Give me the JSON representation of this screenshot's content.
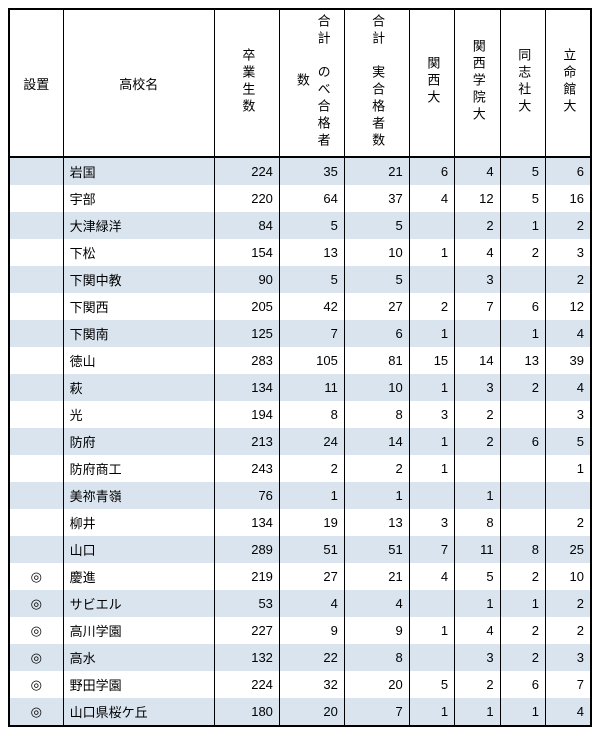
{
  "headers": {
    "installed": "設置",
    "school": "高校名",
    "graduates": "卒業生数",
    "total_nobe": "合計　のべ合格者数",
    "total_jitsu": "合計　実合格者数",
    "kansai": "関西大",
    "kwansei": "関西学院大",
    "doshisha": "同志社大",
    "ritsumeikan": "立命館大"
  },
  "colors": {
    "stripe": "#d9e4ef",
    "border": "#000000",
    "background": "#ffffff"
  },
  "rows": [
    {
      "inst": "",
      "school": "岩国",
      "grad": "224",
      "t1": "35",
      "t2": "21",
      "u1": "6",
      "u2": "4",
      "u3": "5",
      "u4": "6"
    },
    {
      "inst": "",
      "school": "宇部",
      "grad": "220",
      "t1": "64",
      "t2": "37",
      "u1": "4",
      "u2": "12",
      "u3": "5",
      "u4": "16"
    },
    {
      "inst": "",
      "school": "大津緑洋",
      "grad": "84",
      "t1": "5",
      "t2": "5",
      "u1": "",
      "u2": "2",
      "u3": "1",
      "u4": "2"
    },
    {
      "inst": "",
      "school": "下松",
      "grad": "154",
      "t1": "13",
      "t2": "10",
      "u1": "1",
      "u2": "4",
      "u3": "2",
      "u4": "3"
    },
    {
      "inst": "",
      "school": "下関中教",
      "grad": "90",
      "t1": "5",
      "t2": "5",
      "u1": "",
      "u2": "3",
      "u3": "",
      "u4": "2"
    },
    {
      "inst": "",
      "school": "下関西",
      "grad": "205",
      "t1": "42",
      "t2": "27",
      "u1": "2",
      "u2": "7",
      "u3": "6",
      "u4": "12"
    },
    {
      "inst": "",
      "school": "下関南",
      "grad": "125",
      "t1": "7",
      "t2": "6",
      "u1": "1",
      "u2": "",
      "u3": "1",
      "u4": "4"
    },
    {
      "inst": "",
      "school": "徳山",
      "grad": "283",
      "t1": "105",
      "t2": "81",
      "u1": "15",
      "u2": "14",
      "u3": "13",
      "u4": "39"
    },
    {
      "inst": "",
      "school": "萩",
      "grad": "134",
      "t1": "11",
      "t2": "10",
      "u1": "1",
      "u2": "3",
      "u3": "2",
      "u4": "4"
    },
    {
      "inst": "",
      "school": "光",
      "grad": "194",
      "t1": "8",
      "t2": "8",
      "u1": "3",
      "u2": "2",
      "u3": "",
      "u4": "3"
    },
    {
      "inst": "",
      "school": "防府",
      "grad": "213",
      "t1": "24",
      "t2": "14",
      "u1": "1",
      "u2": "2",
      "u3": "6",
      "u4": "5"
    },
    {
      "inst": "",
      "school": "防府商工",
      "grad": "243",
      "t1": "2",
      "t2": "2",
      "u1": "1",
      "u2": "",
      "u3": "",
      "u4": "1"
    },
    {
      "inst": "",
      "school": "美祢青嶺",
      "grad": "76",
      "t1": "1",
      "t2": "1",
      "u1": "",
      "u2": "1",
      "u3": "",
      "u4": ""
    },
    {
      "inst": "",
      "school": "柳井",
      "grad": "134",
      "t1": "19",
      "t2": "13",
      "u1": "3",
      "u2": "8",
      "u3": "",
      "u4": "2"
    },
    {
      "inst": "",
      "school": "山口",
      "grad": "289",
      "t1": "51",
      "t2": "51",
      "u1": "7",
      "u2": "11",
      "u3": "8",
      "u4": "25"
    },
    {
      "inst": "◎",
      "school": "慶進",
      "grad": "219",
      "t1": "27",
      "t2": "21",
      "u1": "4",
      "u2": "5",
      "u3": "2",
      "u4": "10"
    },
    {
      "inst": "◎",
      "school": "サビエル",
      "grad": "53",
      "t1": "4",
      "t2": "4",
      "u1": "",
      "u2": "1",
      "u3": "1",
      "u4": "2"
    },
    {
      "inst": "◎",
      "school": "高川学園",
      "grad": "227",
      "t1": "9",
      "t2": "9",
      "u1": "1",
      "u2": "4",
      "u3": "2",
      "u4": "2"
    },
    {
      "inst": "◎",
      "school": "高水",
      "grad": "132",
      "t1": "22",
      "t2": "8",
      "u1": "",
      "u2": "3",
      "u3": "2",
      "u4": "3"
    },
    {
      "inst": "◎",
      "school": "野田学園",
      "grad": "224",
      "t1": "32",
      "t2": "20",
      "u1": "5",
      "u2": "2",
      "u3": "6",
      "u4": "7"
    },
    {
      "inst": "◎",
      "school": "山口県桜ケ丘",
      "grad": "180",
      "t1": "20",
      "t2": "7",
      "u1": "1",
      "u2": "1",
      "u3": "1",
      "u4": "4"
    }
  ]
}
